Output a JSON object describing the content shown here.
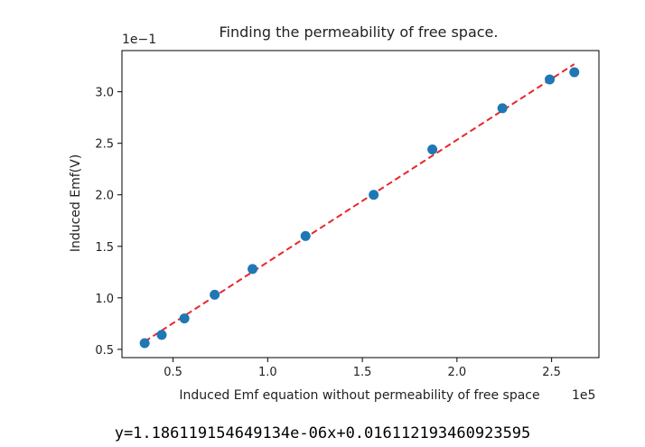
{
  "chart_data": {
    "type": "scatter",
    "title": "Finding the permeability of free space.",
    "xlabel": "Induced Emf equation without permeability of free space",
    "ylabel": "Induced Emf(V)",
    "x_offset_label": "1e5",
    "y_offset_label": "1e−1",
    "x_scale": 100000,
    "y_scale": 0.1,
    "xlim": [
      23000,
      275000
    ],
    "ylim": [
      0.042,
      0.34
    ],
    "x_ticks": [
      {
        "value": 50000,
        "label": "0.5"
      },
      {
        "value": 100000,
        "label": "1.0"
      },
      {
        "value": 150000,
        "label": "1.5"
      },
      {
        "value": 200000,
        "label": "2.0"
      },
      {
        "value": 250000,
        "label": "2.5"
      }
    ],
    "y_ticks": [
      {
        "value": 0.05,
        "label": "0.5"
      },
      {
        "value": 0.1,
        "label": "1.0"
      },
      {
        "value": 0.15,
        "label": "1.5"
      },
      {
        "value": 0.2,
        "label": "2.0"
      },
      {
        "value": 0.25,
        "label": "2.5"
      },
      {
        "value": 0.3,
        "label": "3.0"
      }
    ],
    "grid": false,
    "series": [
      {
        "kind": "points",
        "color": "#1f77b4",
        "x": [
          35000,
          44000,
          56000,
          72000,
          92000,
          120000,
          156000,
          187000,
          224000,
          249000,
          262000
        ],
        "y": [
          0.056,
          0.064,
          0.08,
          0.103,
          0.128,
          0.16,
          0.2,
          0.244,
          0.284,
          0.312,
          0.319
        ]
      },
      {
        "kind": "fit-line",
        "color": "#e8262c",
        "slope": 1.186119154649134e-06,
        "intercept": 0.016112193460923595,
        "x": [
          35000,
          262000
        ]
      }
    ],
    "equation_text": "y=1.186119154649134e-06x+0.016112193460923595"
  }
}
